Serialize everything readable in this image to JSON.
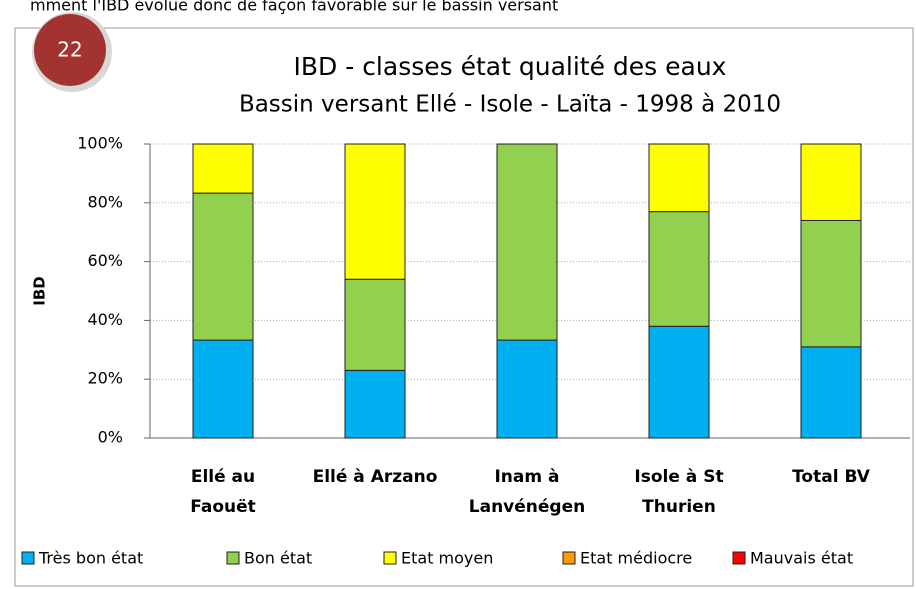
{
  "header": {
    "text": "mment l'IBD évolue donc de façon favorable sur le bassin versant"
  },
  "badge": {
    "text": "22"
  },
  "chart_data": {
    "type": "stacked_bar",
    "title": "IBD - classes état qualité des eaux",
    "subtitle": "Bassin versant Ellé - Isole - Laïta - 1998 à 2010",
    "y_label": "IBD",
    "categories": [
      [
        "Ellé au",
        "Faouët"
      ],
      [
        "Ellé à Arzano"
      ],
      [
        "Inam à",
        "Lanvénégen"
      ],
      [
        "Isole à St",
        "Thurien"
      ],
      [
        "Total BV"
      ]
    ],
    "series": [
      {
        "name": "Très bon état",
        "color": "#00b0f0",
        "values": [
          33.3,
          23,
          33.3,
          38,
          31
        ]
      },
      {
        "name": "Bon état",
        "color": "#92d050",
        "values": [
          50,
          31,
          66.7,
          39,
          43
        ]
      },
      {
        "name": "Etat moyen",
        "color": "#ffff00",
        "values": [
          16.7,
          46,
          0,
          23,
          26
        ]
      },
      {
        "name": "Etat médiocre",
        "color": "#ff9900",
        "values": [
          0,
          0,
          0,
          0,
          0
        ]
      },
      {
        "name": "Mauvais état",
        "color": "#ff0000",
        "values": [
          0,
          0,
          0,
          0,
          0
        ]
      }
    ],
    "ylim": [
      0,
      100
    ],
    "yticks": [
      {
        "value": 0,
        "label": "0%"
      },
      {
        "value": 20,
        "label": "20%"
      },
      {
        "value": 40,
        "label": "40%"
      },
      {
        "value": 60,
        "label": "60%"
      },
      {
        "value": 80,
        "label": "80%"
      },
      {
        "value": 100,
        "label": "100%"
      }
    ],
    "grid": true,
    "legend": "bottom"
  }
}
